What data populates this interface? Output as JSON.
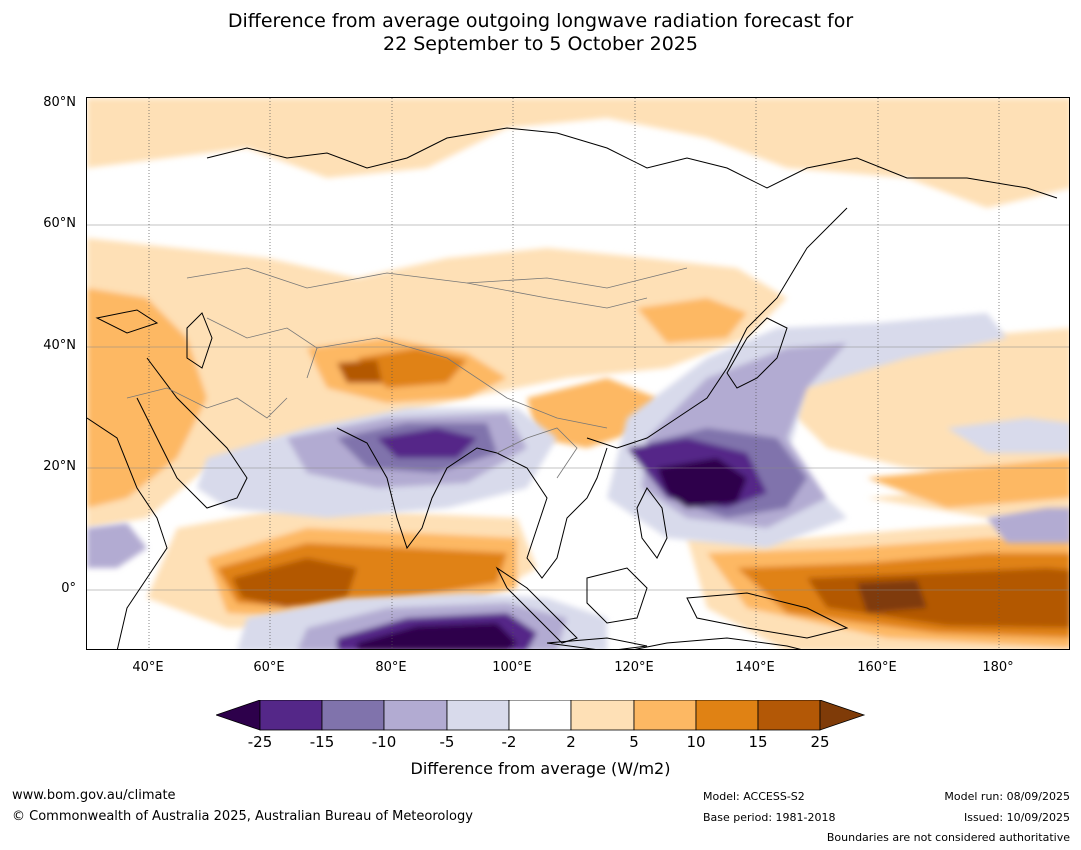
{
  "title_line1": "Difference from average outgoing longwave radiation forecast for",
  "title_line2": "22 September to 5 October 2025",
  "map": {
    "lat_labels": [
      "80°N",
      "60°N",
      "40°N",
      "20°N",
      "0°"
    ],
    "lon_labels": [
      "40°E",
      "60°E",
      "80°E",
      "100°E",
      "120°E",
      "140°E",
      "160°E",
      "180°"
    ],
    "extent": {
      "lon_min": 30,
      "lon_max": 192,
      "lat_min": -10,
      "lat_max": 81
    }
  },
  "colorbar": {
    "title": "Difference from average (W/m2)",
    "ticks": [
      "-25",
      "-15",
      "-10",
      "-5",
      "-2",
      "2",
      "5",
      "10",
      "15",
      "25"
    ],
    "colors": [
      "#2d004b",
      "#542788",
      "#8073ac",
      "#b2abd2",
      "#d8daeb",
      "#ffffff",
      "#fee0b6",
      "#fdb863",
      "#e08214",
      "#b35806",
      "#7f3b08"
    ]
  },
  "footer": {
    "website": "www.bom.gov.au/climate",
    "copyright": "© Commonwealth of Australia 2025, Australian Bureau of Meteorology",
    "model": "Model: ACCESS-S2",
    "base_period": "Base period: 1981-2018",
    "model_run": "Model run: 08/09/2025",
    "issued": "Issued: 10/09/2025",
    "disclaimer": "Boundaries are not considered authoritative"
  }
}
